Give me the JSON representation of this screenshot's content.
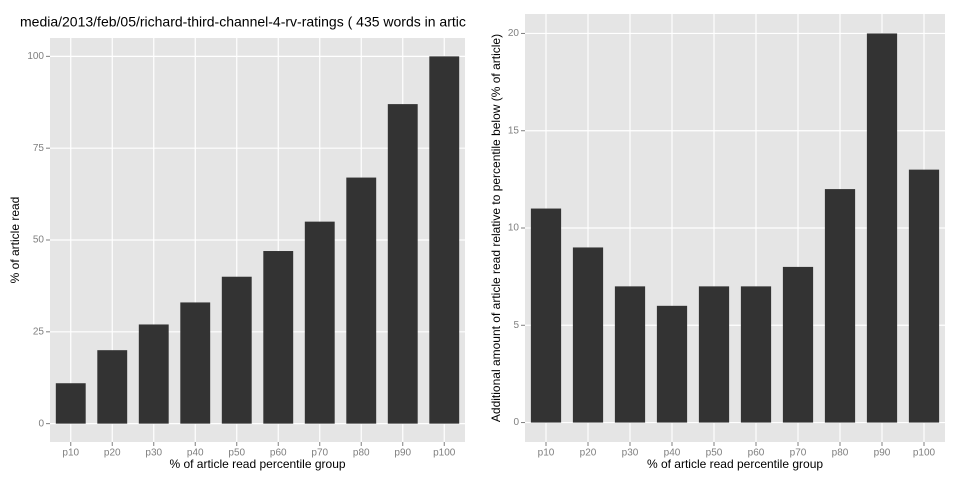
{
  "chart_data": [
    {
      "type": "bar",
      "title": "media/2013/feb/05/richard-third-channel-4-rv-ratings ( 435 words in artic",
      "x_label": "% of article read percentile group",
      "y_label": "% of article read",
      "categories": [
        "p10",
        "p20",
        "p30",
        "p40",
        "p50",
        "p60",
        "p70",
        "p80",
        "p90",
        "p100"
      ],
      "values": [
        11,
        20,
        27,
        33,
        40,
        47,
        55,
        67,
        87,
        100
      ],
      "color": "#333333",
      "ylim": [
        -5,
        105
      ],
      "yticks": [
        0,
        25,
        50,
        75,
        100
      ],
      "grid": true
    },
    {
      "type": "bar",
      "x_label": "% of article read percentile group",
      "y_label": "Additional amount of article read relative to percentile below (% of article)",
      "categories": [
        "p10",
        "p20",
        "p30",
        "p40",
        "p50",
        "p60",
        "p70",
        "p80",
        "p90",
        "p100"
      ],
      "values": [
        11,
        9,
        7,
        6,
        7,
        7,
        8,
        12,
        20,
        13
      ],
      "color": "#333333",
      "ylim": [
        -1,
        21
      ],
      "yticks": [
        0,
        5,
        10,
        15,
        20
      ],
      "grid": true
    }
  ]
}
